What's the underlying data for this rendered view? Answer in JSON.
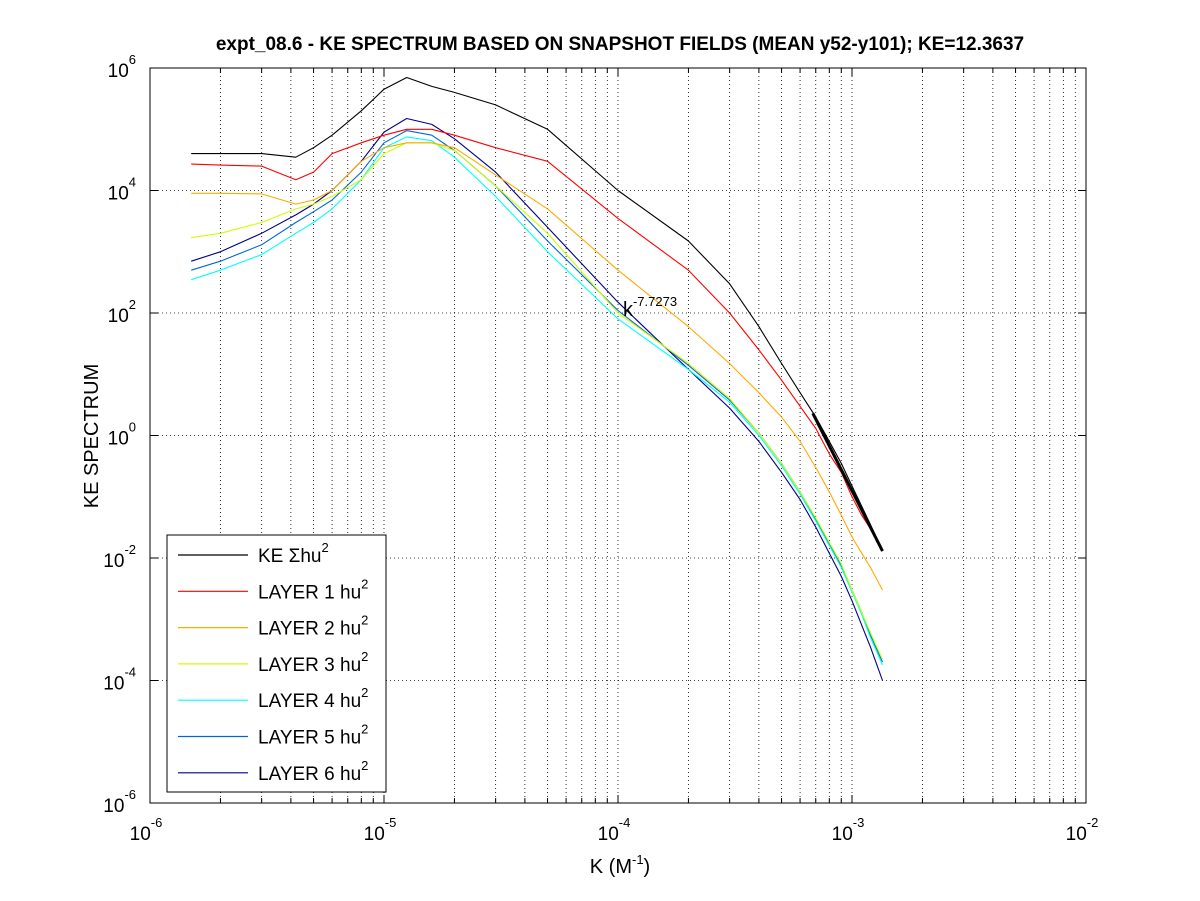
{
  "chart_data": {
    "type": "line",
    "title": "expt_08.6 - KE SPECTRUM BASED ON SNAPSHOT FIELDS (MEAN y52-y101); KE=12.3637",
    "xlabel": {
      "main": "K  (M",
      "sup": "-1",
      "tail": ")"
    },
    "ylabel": "KE SPECTRUM",
    "x_scale": "log",
    "y_scale": "log",
    "xlim": [
      1e-06,
      0.01
    ],
    "ylim": [
      1e-06,
      1000000.0
    ],
    "grid": true,
    "legend_position": "bottom-left",
    "x_ticks": [
      {
        "base": "10",
        "exp": "-6",
        "value": 1e-06
      },
      {
        "base": "10",
        "exp": "-5",
        "value": 1e-05
      },
      {
        "base": "10",
        "exp": "-4",
        "value": 0.0001
      },
      {
        "base": "10",
        "exp": "-3",
        "value": 0.001
      },
      {
        "base": "10",
        "exp": "-2",
        "value": 0.01
      }
    ],
    "y_ticks": [
      {
        "base": "10",
        "exp": "6",
        "value": 1000000.0
      },
      {
        "base": "10",
        "exp": "4",
        "value": 10000.0
      },
      {
        "base": "10",
        "exp": "2",
        "value": 100.0
      },
      {
        "base": "10",
        "exp": "0",
        "value": 1
      },
      {
        "base": "10",
        "exp": "-2",
        "value": 0.01
      },
      {
        "base": "10",
        "exp": "-4",
        "value": 0.0001
      },
      {
        "base": "10",
        "exp": "-6",
        "value": 1e-06
      }
    ],
    "annotation": {
      "text": "k",
      "sup": "-7.7273",
      "x": 0.000105,
      "y": 90
    },
    "fit_line": {
      "exponent": -7.7273,
      "x": [
        0.00068,
        0.00135
      ],
      "y": [
        2.3,
        0.013
      ],
      "color": "#000000"
    },
    "series": [
      {
        "label": "KE Σhu",
        "sup": "2",
        "color": "#000000",
        "x": [
          1.5e-06,
          2e-06,
          3e-06,
          4.2e-06,
          5e-06,
          6e-06,
          8e-06,
          1e-05,
          1.25e-05,
          1.6e-05,
          2e-05,
          3e-05,
          5e-05,
          0.0001,
          0.0002,
          0.0003,
          0.0004,
          0.0005,
          0.0006,
          0.0007,
          0.0008,
          0.0009,
          0.001,
          0.0011,
          0.0012,
          0.00135
        ],
        "y": [
          40000,
          40000,
          40000,
          35000,
          50000,
          80000,
          200000,
          450000,
          700000,
          500000,
          400000,
          250000,
          100000,
          10000,
          1500,
          300,
          60,
          15,
          5,
          2,
          0.8,
          0.35,
          0.15,
          0.07,
          0.035,
          0.013
        ]
      },
      {
        "label": "LAYER 1 hu",
        "sup": "2",
        "color": "#ff0000",
        "x": [
          1.5e-06,
          2e-06,
          3e-06,
          4.2e-06,
          5e-06,
          6e-06,
          8e-06,
          1e-05,
          1.25e-05,
          1.6e-05,
          2e-05,
          3e-05,
          5e-05,
          0.0001,
          0.0002,
          0.0003,
          0.0004,
          0.0005,
          0.0006,
          0.0007,
          0.0008,
          0.0009,
          0.001,
          0.0011,
          0.0012,
          0.00135
        ],
        "y": [
          27000,
          26000,
          25000,
          15000,
          20000,
          40000,
          60000,
          80000,
          100000,
          100000,
          80000,
          50000,
          30000,
          3500,
          500,
          100,
          25,
          8,
          3,
          1.3,
          0.5,
          0.25,
          0.1,
          0.05,
          0.03,
          0.013
        ]
      },
      {
        "label": "LAYER 2 hu",
        "sup": "2",
        "color": "#ffaa00",
        "x": [
          1.5e-06,
          2e-06,
          3e-06,
          4.2e-06,
          5e-06,
          6e-06,
          8e-06,
          1e-05,
          1.25e-05,
          1.6e-05,
          2e-05,
          3e-05,
          5e-05,
          0.0001,
          0.0002,
          0.0003,
          0.0004,
          0.0005,
          0.0006,
          0.0007,
          0.0008,
          0.0009,
          0.001,
          0.0011,
          0.0012,
          0.00135
        ],
        "y": [
          9000,
          9000,
          8800,
          6000,
          7000,
          10000,
          30000,
          50000,
          60000,
          60000,
          50000,
          18000,
          5000,
          500,
          60,
          15,
          5,
          2,
          0.8,
          0.3,
          0.12,
          0.05,
          0.022,
          0.012,
          0.007,
          0.003
        ]
      },
      {
        "label": "LAYER 3 hu",
        "sup": "2",
        "color": "#ccff00",
        "x": [
          1.5e-06,
          2e-06,
          3e-06,
          4.2e-06,
          5e-06,
          6e-06,
          8e-06,
          1e-05,
          1.25e-05,
          1.6e-05,
          2e-05,
          3e-05,
          5e-05,
          0.0001,
          0.0002,
          0.0003,
          0.0004,
          0.0005,
          0.0006,
          0.0007,
          0.0008,
          0.0009,
          0.001,
          0.0011,
          0.0012,
          0.00135
        ],
        "y": [
          1700,
          2000,
          3000,
          5000,
          6000,
          8000,
          15000,
          40000,
          60000,
          60000,
          45000,
          12000,
          2000,
          100,
          15,
          4,
          1.1,
          0.35,
          0.12,
          0.045,
          0.018,
          0.008,
          0.003,
          0.0013,
          0.0006,
          0.00022
        ]
      },
      {
        "label": "LAYER 4 hu",
        "sup": "2",
        "color": "#00ffff",
        "x": [
          1.5e-06,
          2e-06,
          3e-06,
          4.2e-06,
          5e-06,
          6e-06,
          8e-06,
          1e-05,
          1.25e-05,
          1.6e-05,
          2e-05,
          3e-05,
          5e-05,
          0.0001,
          0.0002,
          0.0003,
          0.0004,
          0.0005,
          0.0006,
          0.0007,
          0.0008,
          0.0009,
          0.001,
          0.0011,
          0.0012,
          0.00135
        ],
        "y": [
          350,
          500,
          900,
          2000,
          3000,
          5000,
          15000,
          50000,
          75000,
          65000,
          35000,
          8000,
          1000,
          80,
          12,
          3.5,
          1,
          0.32,
          0.11,
          0.04,
          0.016,
          0.007,
          0.0028,
          0.0012,
          0.0005,
          0.00018
        ]
      },
      {
        "label": "LAYER 5 hu",
        "sup": "2",
        "color": "#0066dd",
        "x": [
          1.5e-06,
          2e-06,
          3e-06,
          4.2e-06,
          5e-06,
          6e-06,
          8e-06,
          1e-05,
          1.25e-05,
          1.6e-05,
          2e-05,
          3e-05,
          5e-05,
          0.0001,
          0.0002,
          0.0003,
          0.0004,
          0.0005,
          0.0006,
          0.0007,
          0.0008,
          0.0009,
          0.001,
          0.0011,
          0.0012,
          0.00135
        ],
        "y": [
          500,
          700,
          1300,
          3000,
          4500,
          7000,
          20000,
          60000,
          95000,
          80000,
          45000,
          12000,
          1500,
          110,
          14,
          3.8,
          1.1,
          0.35,
          0.12,
          0.043,
          0.017,
          0.0075,
          0.003,
          0.0013,
          0.00055,
          0.0002
        ]
      },
      {
        "label": "LAYER 6 hu",
        "sup": "2",
        "color": "#000088",
        "x": [
          1.5e-06,
          2e-06,
          3e-06,
          4.2e-06,
          5e-06,
          6e-06,
          8e-06,
          1e-05,
          1.25e-05,
          1.6e-05,
          2e-05,
          3e-05,
          5e-05,
          0.0001,
          0.0002,
          0.0003,
          0.0004,
          0.0005,
          0.0006,
          0.0007,
          0.0008,
          0.0009,
          0.001,
          0.0011,
          0.0012,
          0.00135
        ],
        "y": [
          700,
          1000,
          2000,
          4000,
          6000,
          10000,
          30000,
          90000,
          150000,
          120000,
          70000,
          20000,
          2500,
          150,
          12,
          2.8,
          0.8,
          0.25,
          0.09,
          0.032,
          0.012,
          0.005,
          0.002,
          0.0008,
          0.00035,
          0.0001
        ]
      }
    ]
  }
}
